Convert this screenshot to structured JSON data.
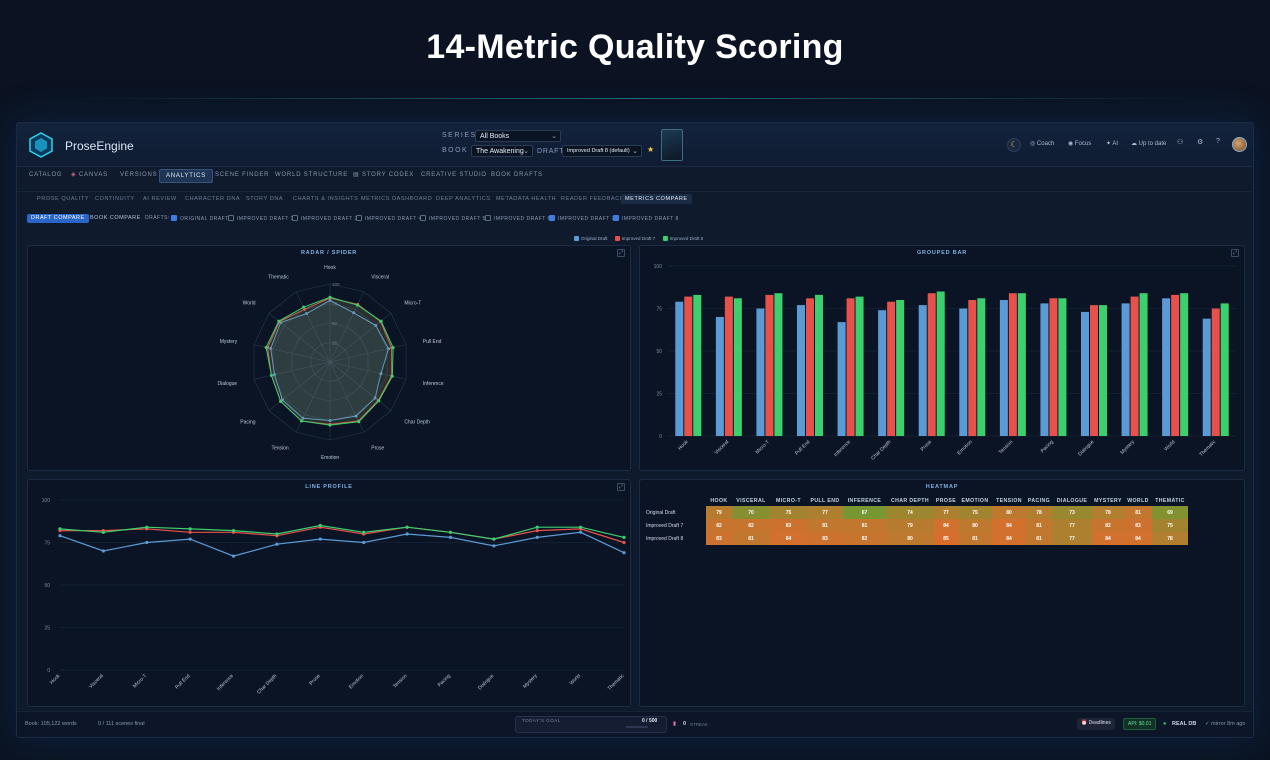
{
  "page": {
    "headline": "14-Metric Quality Scoring"
  },
  "app": {
    "name": "ProseEngine"
  },
  "selectors": {
    "series_label": "SERIES",
    "series_value": "All Books",
    "book_label": "BOOK",
    "book_value": "The Awakening",
    "draft_label": "DRAFT",
    "draft_value": "Improved Draft 8 (default)"
  },
  "toolbar": {
    "coach": "Coach",
    "focus": "Focus",
    "ai": "AI",
    "status": "Up to date",
    "help": "?"
  },
  "nav_primary": [
    "CATALOG",
    "CANVAS",
    "VERSIONS",
    "ANALYTICS",
    "SCENE FINDER",
    "WORLD STRUCTURE",
    "STORY CODEX",
    "CREATIVE STUDIO",
    "BOOK DRAFTS"
  ],
  "nav_primary_active": "ANALYTICS",
  "nav_secondary": [
    "PROSE QUALITY",
    "CONTINUITY",
    "AI REVIEW",
    "CHARACTER DNA",
    "STORY DNA",
    "CHARTS & INSIGHTS",
    "METRICS DASHBOARD",
    "DEEP ANALYTICS",
    "METADATA HEALTH",
    "READER FEEDBACK",
    "METRICS COMPARE"
  ],
  "nav_secondary_active": "METRICS COMPARE",
  "compare_tabs": {
    "draft": "DRAFT COMPARE",
    "book": "BOOK COMPARE",
    "drafts_label": "DRAFTS:"
  },
  "draft_toggles": [
    {
      "label": "ORIGINAL DRAFT",
      "checked": true
    },
    {
      "label": "IMPROVED DRAFT 1",
      "checked": false
    },
    {
      "label": "IMPROVED DRAFT 2",
      "checked": false
    },
    {
      "label": "IMPROVED DRAFT 4",
      "checked": false
    },
    {
      "label": "IMPROVED DRAFT 5",
      "checked": false
    },
    {
      "label": "IMPROVED DRAFT 6",
      "checked": false
    },
    {
      "label": "IMPROVED DRAFT 7",
      "checked": true
    },
    {
      "label": "IMPROVED DRAFT 8",
      "checked": true
    }
  ],
  "panels": {
    "radar": "RADAR / SPIDER",
    "bar": "GROUPED BAR",
    "line": "LINE PROFILE",
    "heatmap": "HEATMAP"
  },
  "chart_data": {
    "type": "bar",
    "categories": [
      "Hook",
      "Visceral",
      "Micro-T",
      "Pull End",
      "Inference",
      "Char Depth",
      "Prose",
      "Emotion",
      "Tension",
      "Pacing",
      "Dialogue",
      "Mystery",
      "World",
      "Thematic"
    ],
    "heatmap_headers": [
      "HOOK",
      "VISCERAL",
      "MICRO-T",
      "PULL END",
      "INFERENCE",
      "CHAR DEPTH",
      "PROSE",
      "EMOTION",
      "TENSION",
      "PACING",
      "DIALOGUE",
      "MYSTERY",
      "WORLD",
      "THEMATIC"
    ],
    "series": [
      {
        "name": "Original Draft",
        "color": "#5b9bd5",
        "values": [
          79,
          70,
          75,
          77,
          67,
          74,
          77,
          75,
          80,
          78,
          73,
          78,
          81,
          69
        ]
      },
      {
        "name": "Improved Draft 7",
        "color": "#e8514b",
        "values": [
          82,
          82,
          83,
          81,
          81,
          79,
          84,
          80,
          84,
          81,
          77,
          82,
          83,
          75
        ]
      },
      {
        "name": "Improved Draft 8",
        "color": "#3ccf6e",
        "values": [
          83,
          81,
          84,
          83,
          82,
          80,
          85,
          81,
          84,
          81,
          77,
          84,
          84,
          78
        ]
      }
    ],
    "ylim": [
      0,
      100
    ],
    "yticks": [
      0,
      25,
      50,
      75,
      100
    ],
    "grid": true,
    "legend": "top-center"
  },
  "footer": {
    "words": "Book: 105,122 words",
    "scenes": "0 / 111 scenes final",
    "goal_label": "TODAY'S GOAL",
    "goal_value": "0 / 500",
    "streak_count": "0",
    "streak_label": "STREAK",
    "deadlines": "Deadlines",
    "api": "API: $0.01",
    "db": "REAL DB",
    "mirror": "mirror 8m ago"
  }
}
